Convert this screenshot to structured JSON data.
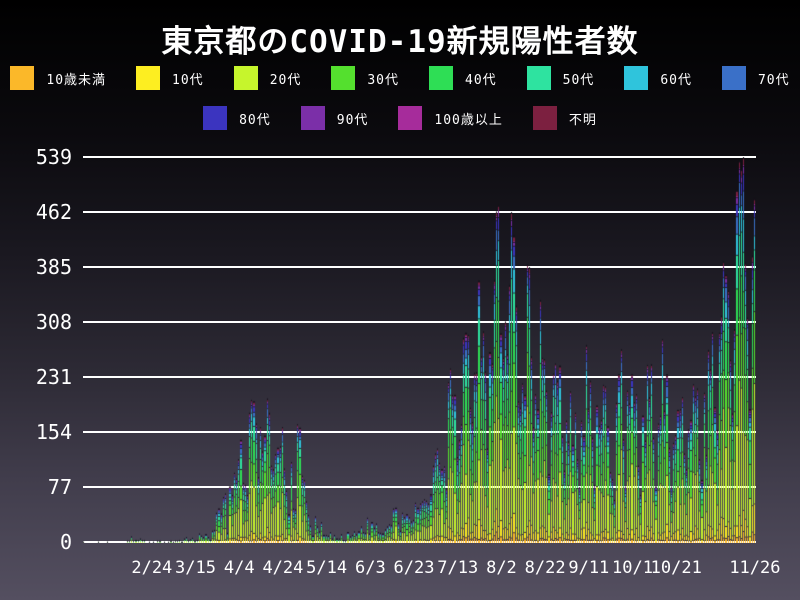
{
  "title": "東京都のCOVID-19新規陽性者数",
  "legend": {
    "rows": [
      {
        "items": [
          {
            "label": "10歳未満",
            "color": "#fbb829"
          },
          {
            "label": "10代",
            "color": "#fdee21"
          },
          {
            "label": "20代",
            "color": "#c6f52c"
          },
          {
            "label": "30代",
            "color": "#54e02e"
          },
          {
            "label": "40代",
            "color": "#2ede55"
          },
          {
            "label": "50代",
            "color": "#2ee3a0"
          },
          {
            "label": "60代",
            "color": "#2fc4dc"
          },
          {
            "label": "70代",
            "color": "#3a70c8"
          }
        ]
      },
      {
        "items": [
          {
            "label": "80代",
            "color": "#3b34bf"
          },
          {
            "label": "90代",
            "color": "#7b2fa8"
          },
          {
            "label": "100歳以上",
            "color": "#a62c9b"
          },
          {
            "label": "不明",
            "color": "#7c2040"
          }
        ]
      }
    ]
  },
  "chart_data": {
    "type": "bar",
    "stacked": true,
    "title": "東京都のCOVID-19新規陽性者数",
    "xlabel": "",
    "ylabel": "",
    "grid": true,
    "legend_position": "top",
    "ylim": [
      0,
      539
    ],
    "y_ticks": [
      539,
      462,
      385,
      308,
      231,
      154,
      77,
      0
    ],
    "x_start_date": "1/24",
    "x_end_date": "11/26",
    "x_tick_labels": [
      "2/24",
      "3/15",
      "4/4",
      "4/24",
      "5/14",
      "6/3",
      "6/23",
      "7/13",
      "8/2",
      "8/22",
      "9/11",
      "10/1",
      "10/21",
      "11/26"
    ],
    "x_tick_day_index": [
      31,
      51,
      71,
      91,
      111,
      131,
      151,
      171,
      191,
      211,
      231,
      251,
      271,
      307
    ],
    "groups_bottom_to_top": [
      {
        "name": "10歳未満",
        "color": "#fbb829",
        "fraction": 0.025
      },
      {
        "name": "10代",
        "color": "#fdee21",
        "fraction": 0.06
      },
      {
        "name": "20代",
        "color": "#c6f52c",
        "fraction": 0.32
      },
      {
        "name": "30代",
        "color": "#54e02e",
        "fraction": 0.2
      },
      {
        "name": "40代",
        "color": "#2ede55",
        "fraction": 0.14
      },
      {
        "name": "50代",
        "color": "#2ee3a0",
        "fraction": 0.095
      },
      {
        "name": "60代",
        "color": "#2fc4dc",
        "fraction": 0.055
      },
      {
        "name": "70代",
        "color": "#3a70c8",
        "fraction": 0.045
      },
      {
        "name": "80代",
        "color": "#3b34bf",
        "fraction": 0.03
      },
      {
        "name": "90代",
        "color": "#7b2fa8",
        "fraction": 0.015
      },
      {
        "name": "100歳以上",
        "color": "#a62c9b",
        "fraction": 0.003
      },
      {
        "name": "不明",
        "color": "#7c2040",
        "fraction": 0.012
      }
    ],
    "daily_totals": [
      1,
      0,
      0,
      0,
      0,
      0,
      0,
      1,
      0,
      0,
      0,
      1,
      0,
      0,
      0,
      0,
      0,
      0,
      0,
      0,
      2,
      2,
      8,
      2,
      3,
      3,
      5,
      3,
      3,
      0,
      1,
      0,
      1,
      0,
      2,
      2,
      0,
      1,
      0,
      1,
      2,
      1,
      2,
      2,
      3,
      1,
      5,
      7,
      2,
      4,
      6,
      2,
      3,
      12,
      9,
      7,
      11,
      7,
      3,
      16,
      17,
      41,
      47,
      40,
      63,
      68,
      13,
      78,
      66,
      97,
      89,
      116,
      143,
      83,
      80,
      66,
      181,
      199,
      197,
      166,
      91,
      161,
      127,
      149,
      201,
      181,
      107,
      102,
      123,
      132,
      134,
      161,
      103,
      72,
      39,
      112,
      47,
      46,
      165,
      160,
      93,
      87,
      57,
      38,
      23,
      9,
      36,
      22,
      15,
      28,
      10,
      10,
      9,
      14,
      5,
      10,
      5,
      5,
      11,
      3,
      2,
      14,
      8,
      10,
      15,
      11,
      15,
      22,
      14,
      13,
      34,
      12,
      28,
      20,
      26,
      14,
      13,
      12,
      18,
      22,
      25,
      24,
      47,
      48,
      27,
      16,
      41,
      35,
      39,
      35,
      29,
      31,
      55,
      48,
      54,
      57,
      60,
      58,
      54,
      67,
      107,
      124,
      131,
      111,
      102,
      106,
      75,
      224,
      243,
      206,
      206,
      119,
      143,
      165,
      286,
      293,
      290,
      188,
      168,
      237,
      238,
      366,
      260,
      295,
      239,
      131,
      266,
      250,
      367,
      463,
      472,
      292,
      258,
      309,
      263,
      360,
      462,
      429,
      331,
      197,
      188,
      222,
      206,
      389,
      385,
      260,
      161,
      207,
      186,
      339,
      258,
      256,
      212,
      95,
      182,
      236,
      250,
      226,
      247,
      148,
      100,
      170,
      141,
      211,
      136,
      181,
      116,
      77,
      170,
      149,
      276,
      187,
      226,
      146,
      80,
      191,
      163,
      171,
      220,
      218,
      162,
      98,
      88,
      59,
      195,
      235,
      270,
      144,
      78,
      212,
      194,
      235,
      196,
      207,
      107,
      66,
      177,
      142,
      248,
      203,
      249,
      146,
      78,
      166,
      177,
      284,
      184,
      235,
      132,
      78,
      139,
      150,
      185,
      186,
      203,
      124,
      102,
      158,
      171,
      221,
      204,
      215,
      116,
      87,
      209,
      122,
      269,
      242,
      294,
      189,
      157,
      293,
      317,
      393,
      374,
      352,
      255,
      180,
      298,
      493,
      534,
      522,
      539,
      391,
      314,
      186,
      401,
      481
    ]
  },
  "colors": {
    "background_top": "#000000",
    "background_bottom": "#544f60",
    "gridline": "#ffffff",
    "text": "#ffffff"
  }
}
